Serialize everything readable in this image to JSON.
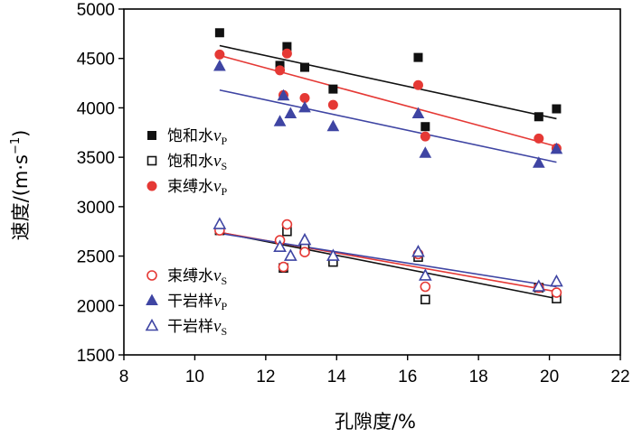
{
  "chart_data": {
    "type": "scatter",
    "title": "",
    "xlabel": "孔隙度/%",
    "ylabel": "速度/(m·s⁻¹)",
    "ylabel_parts": {
      "main": "速度/(m·s",
      "sup": "−1",
      "close": ")"
    },
    "xlim": [
      8,
      22
    ],
    "ylim": [
      1500,
      5000
    ],
    "xticks": [
      8,
      10,
      12,
      14,
      16,
      18,
      20,
      22
    ],
    "yticks": [
      1500,
      2000,
      2500,
      3000,
      3500,
      4000,
      4500,
      5000
    ],
    "grid": false,
    "colors": {
      "black": "#111111",
      "red": "#e53935",
      "blue": "#3f45a3",
      "axis": "#000000"
    },
    "series": [
      {
        "name": "饱和水vP",
        "label": "饱和水",
        "var": "v",
        "sub": "P",
        "marker": "square",
        "filled": true,
        "color": "#111111",
        "x": [
          10.7,
          12.4,
          12.6,
          13.1,
          13.9,
          16.3,
          16.5,
          19.7,
          20.2
        ],
        "y": [
          4760,
          4430,
          4620,
          4410,
          4190,
          4510,
          3810,
          3910,
          3990
        ],
        "fit": [
          [
            10.7,
            4630
          ],
          [
            20.2,
            3890
          ]
        ]
      },
      {
        "name": "饱和水vS",
        "label": "饱和水",
        "var": "v",
        "sub": "S",
        "marker": "square",
        "filled": false,
        "color": "#111111",
        "x": [
          10.7,
          12.5,
          12.6,
          13.1,
          13.9,
          16.3,
          16.5,
          19.7,
          20.2
        ],
        "y": [
          2760,
          2380,
          2750,
          2580,
          2440,
          2490,
          2060,
          2180,
          2070
        ],
        "fit": [
          [
            10.7,
            2740
          ],
          [
            20.2,
            2070
          ]
        ]
      },
      {
        "name": "束缚水vP",
        "label": "束缚水",
        "var": "v",
        "sub": "P",
        "marker": "circle",
        "filled": true,
        "color": "#e53935",
        "x": [
          10.7,
          12.4,
          12.5,
          12.6,
          13.1,
          13.9,
          16.3,
          16.5,
          19.7,
          20.2
        ],
        "y": [
          4540,
          4380,
          4130,
          4550,
          4100,
          4030,
          4230,
          3710,
          3690,
          3590
        ],
        "fit": [
          [
            10.7,
            4530
          ],
          [
            20.2,
            3610
          ]
        ]
      },
      {
        "name": "束缚水vS",
        "label": "束缚水",
        "var": "v",
        "sub": "S",
        "marker": "circle",
        "filled": false,
        "color": "#e53935",
        "x": [
          10.7,
          12.4,
          12.5,
          12.6,
          13.1,
          16.3,
          16.5,
          19.7,
          20.2
        ],
        "y": [
          2760,
          2660,
          2390,
          2820,
          2540,
          2520,
          2190,
          2180,
          2130
        ],
        "fit": [
          [
            10.7,
            2740
          ],
          [
            20.2,
            2140
          ]
        ]
      },
      {
        "name": "干岩样vP",
        "label": "干岩样",
        "var": "v",
        "sub": "P",
        "marker": "triangle",
        "filled": true,
        "color": "#3f45a3",
        "x": [
          10.7,
          12.4,
          12.5,
          12.7,
          13.1,
          13.9,
          16.3,
          16.5,
          19.7,
          20.2
        ],
        "y": [
          4420,
          3860,
          4120,
          3940,
          4000,
          3810,
          3940,
          3540,
          3440,
          3580
        ],
        "fit": [
          [
            10.7,
            4180
          ],
          [
            20.2,
            3450
          ]
        ]
      },
      {
        "name": "干岩样vS",
        "label": "干岩样",
        "var": "v",
        "sub": "S",
        "marker": "triangle",
        "filled": false,
        "color": "#3f45a3",
        "x": [
          10.7,
          12.4,
          12.7,
          13.1,
          13.9,
          16.3,
          16.5,
          19.7,
          20.2
        ],
        "y": [
          2820,
          2590,
          2500,
          2660,
          2500,
          2540,
          2300,
          2190,
          2240
        ],
        "fit": [
          [
            10.7,
            2730
          ],
          [
            20.2,
            2190
          ]
        ]
      }
    ]
  }
}
